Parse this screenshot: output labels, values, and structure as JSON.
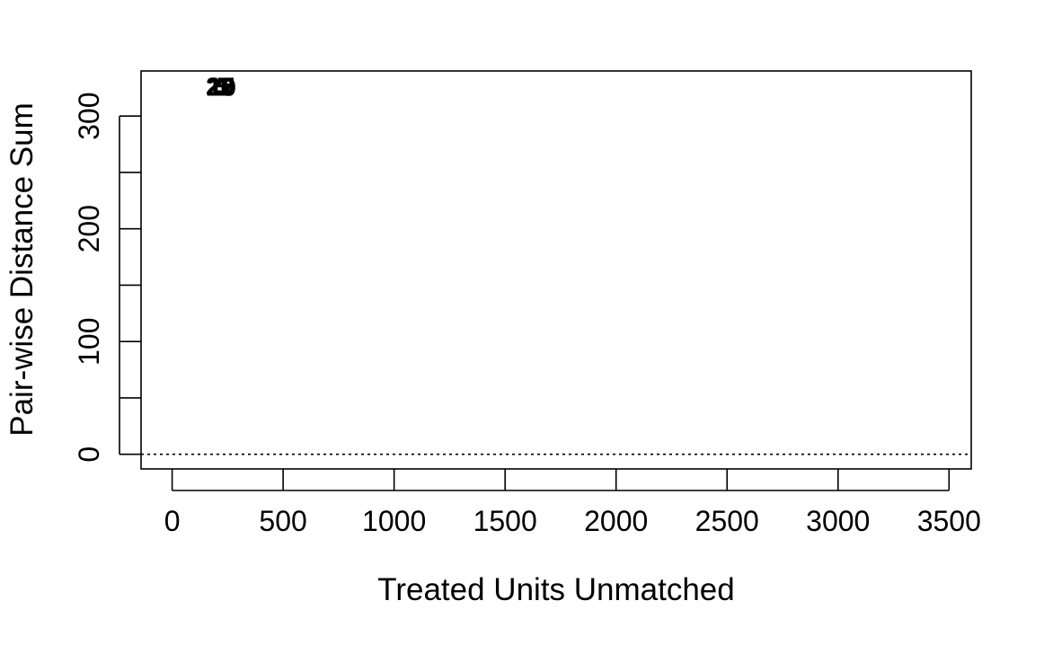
{
  "chart_data": {
    "type": "scatter",
    "title": "",
    "xlabel": "Treated Units Unmatched",
    "ylabel": "Pair-wise Distance Sum",
    "xlim": [
      -140,
      3600
    ],
    "ylim": [
      -13,
      340
    ],
    "xticks": [
      0,
      500,
      1000,
      1500,
      2000,
      2500,
      3000,
      3500
    ],
    "yticks": [
      0,
      50,
      100,
      150,
      200,
      250,
      300
    ],
    "ytick_labels": [
      "0",
      "",
      "100",
      "",
      "200",
      "",
      "300"
    ],
    "reference_line": {
      "y": 0,
      "style": "dotted"
    },
    "points": [
      {
        "x": 215,
        "y": 327,
        "label": "25"
      },
      {
        "x": 218,
        "y": 326,
        "label": "20"
      },
      {
        "x": 222,
        "y": 327,
        "label": "15"
      },
      {
        "x": 226,
        "y": 326,
        "label": "10"
      },
      {
        "x": 230,
        "y": 327,
        "label": "5"
      },
      {
        "x": 234,
        "y": 326,
        "label": "1"
      }
    ]
  }
}
